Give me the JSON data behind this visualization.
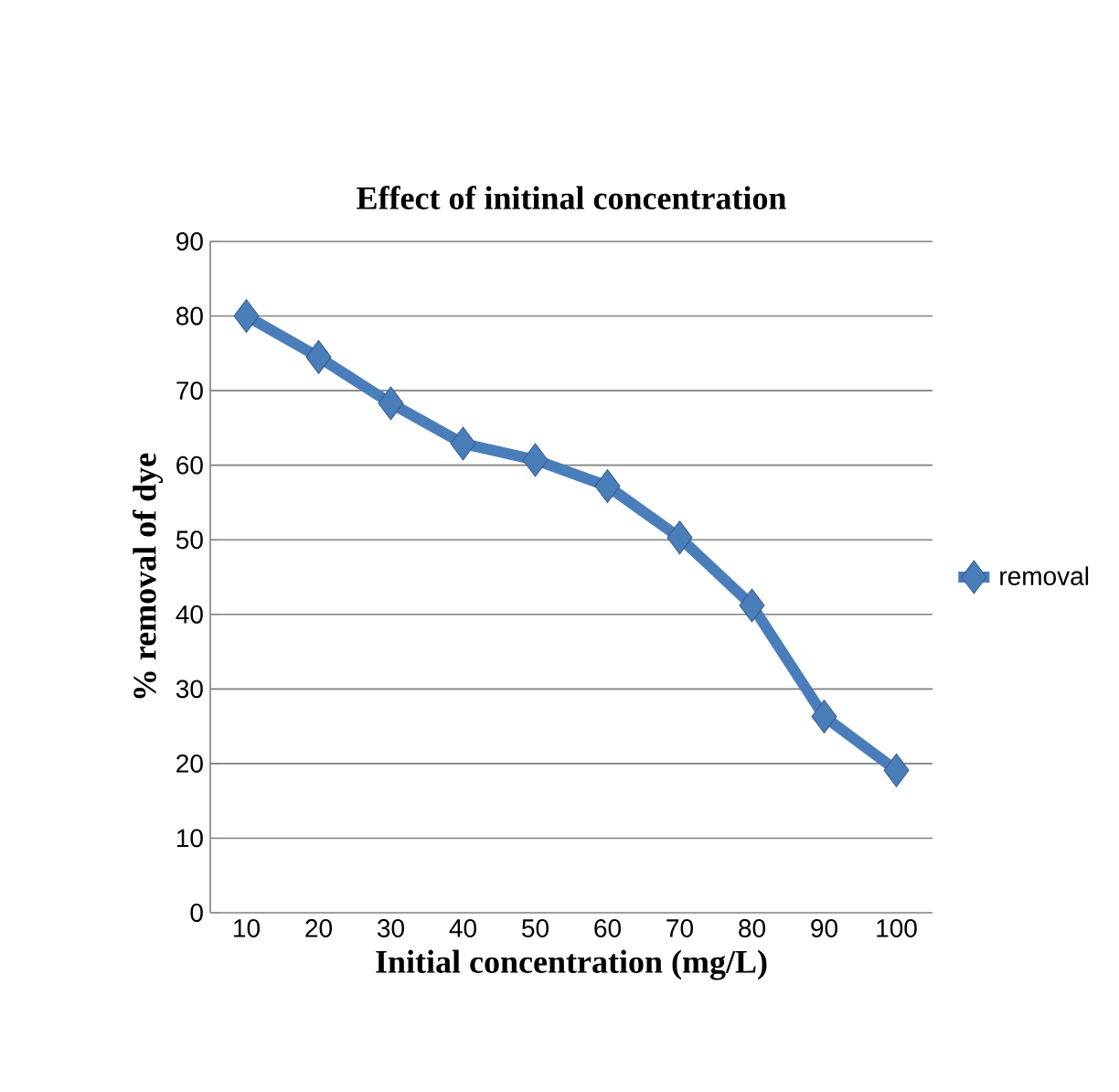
{
  "chart_data": {
    "type": "line",
    "title": "Effect of initinal concentration",
    "xlabel": "Initial concentration (mg/L)",
    "ylabel": "% removal of dye",
    "categories": [
      "10",
      "20",
      "30",
      "40",
      "50",
      "60",
      "70",
      "80",
      "90",
      "100"
    ],
    "series": [
      {
        "name": "removal",
        "color": "#4a7ebb",
        "values": [
          80,
          74.5,
          68.3,
          62.9,
          60.7,
          57.2,
          50.3,
          41.2,
          26.3,
          19.1
        ]
      }
    ],
    "ylim": [
      0,
      90
    ],
    "yticks": [
      0,
      10,
      20,
      30,
      40,
      50,
      60,
      70,
      80,
      90
    ],
    "grid": "y",
    "legend": "right",
    "marker": "diamond",
    "line_style": "solid"
  }
}
